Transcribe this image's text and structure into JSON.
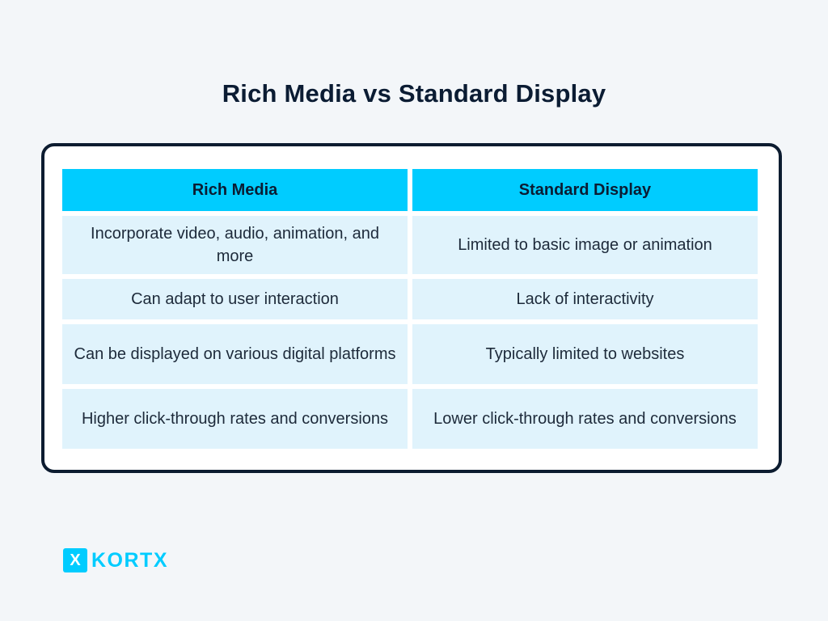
{
  "page": {
    "title": "Rich Media vs Standard Display"
  },
  "table": {
    "headers": [
      "Rich Media",
      "Standard Display"
    ],
    "rows": [
      [
        "Incorporate video, audio, animation, and more",
        "Limited to basic image or animation"
      ],
      [
        "Can adapt to user interaction",
        "Lack of interactivity"
      ],
      [
        "Can be displayed on various digital platforms",
        "Typically limited to websites"
      ],
      [
        "Higher click-through rates and conversions",
        "Lower click-through rates and conversions"
      ]
    ]
  },
  "brand": {
    "mark": "X",
    "name": "KORTX",
    "icon": "kortx-x-logo-icon"
  },
  "colors": {
    "background": "#f3f6f9",
    "header_fill": "#00ccff",
    "cell_fill": "#e0f3fc",
    "border": "#0c1c30",
    "brand_accent": "#00ccff"
  }
}
